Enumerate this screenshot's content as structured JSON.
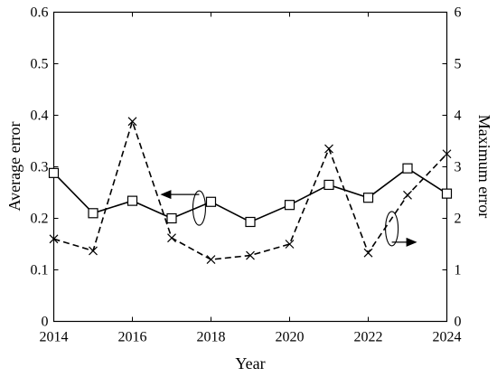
{
  "chart_data": {
    "type": "line",
    "title": "",
    "xlabel": "Year",
    "ylabel_left": "Average error",
    "ylabel_right": "Maximum error",
    "xlim": [
      2014,
      2024
    ],
    "ylim_left": [
      0,
      0.6
    ],
    "ylim_right": [
      0,
      6
    ],
    "grid": false,
    "x_ticks": [
      "2014",
      "2016",
      "2018",
      "2020",
      "2022",
      "2024"
    ],
    "y_left_ticks": [
      "0",
      "0.1",
      "0.2",
      "0.3",
      "0.4",
      "0.5",
      "0.6"
    ],
    "y_right_ticks": [
      "0",
      "1",
      "2",
      "3",
      "4",
      "5",
      "6"
    ],
    "x": [
      2014,
      2015,
      2016,
      2017,
      2018,
      2019,
      2020,
      2021,
      2022,
      2023,
      2024
    ],
    "series": [
      {
        "axis": "left",
        "line_style": "solid",
        "marker": "square",
        "values": [
          0.288,
          0.21,
          0.234,
          0.2,
          0.232,
          0.193,
          0.226,
          0.265,
          0.24,
          0.297,
          0.248
        ]
      },
      {
        "axis": "right",
        "line_style": "dashed",
        "marker": "x",
        "values": [
          1.6,
          1.37,
          3.88,
          1.62,
          1.2,
          1.28,
          1.5,
          3.35,
          1.33,
          2.45,
          3.25
        ]
      }
    ],
    "annotations": [
      {
        "type": "ellipse-arrow",
        "axis": "left",
        "direction": "left",
        "x": 2017.7,
        "y": 0.22
      },
      {
        "type": "ellipse-arrow",
        "axis": "right",
        "direction": "right",
        "x": 2022.6,
        "y": 1.8
      }
    ]
  }
}
